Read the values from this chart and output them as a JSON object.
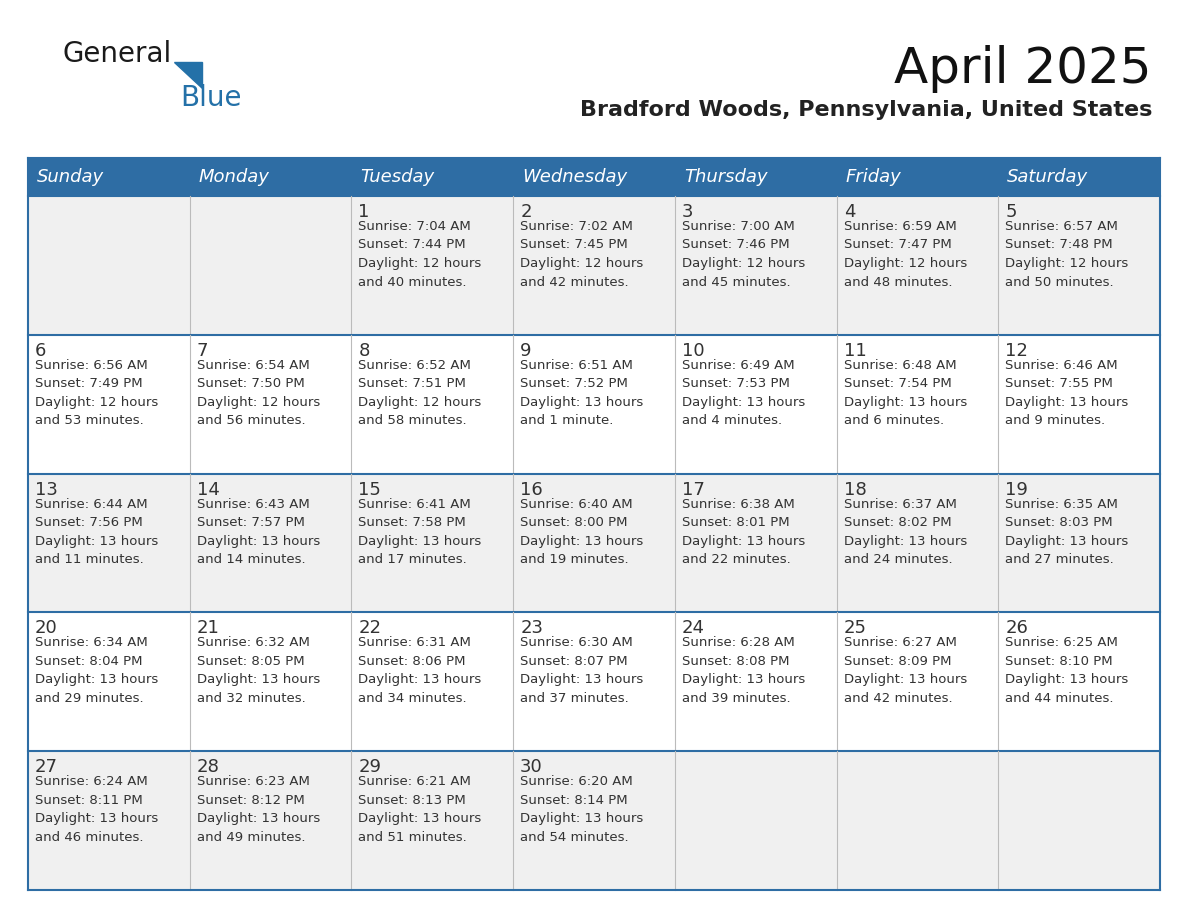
{
  "title": "April 2025",
  "subtitle": "Bradford Woods, Pennsylvania, United States",
  "header_color": "#2E6DA4",
  "header_text_color": "#FFFFFF",
  "border_color": "#2E6DA4",
  "row_sep_color": "#3B5998",
  "col_sep_color": "#BBBBBB",
  "text_color": "#333333",
  "cell_bg_colors": [
    "#F0F0F0",
    "#FFFFFF",
    "#F0F0F0",
    "#FFFFFF",
    "#F0F0F0"
  ],
  "days_of_week": [
    "Sunday",
    "Monday",
    "Tuesday",
    "Wednesday",
    "Thursday",
    "Friday",
    "Saturday"
  ],
  "weeks": [
    [
      {
        "day": "",
        "info": ""
      },
      {
        "day": "",
        "info": ""
      },
      {
        "day": "1",
        "info": "Sunrise: 7:04 AM\nSunset: 7:44 PM\nDaylight: 12 hours\nand 40 minutes."
      },
      {
        "day": "2",
        "info": "Sunrise: 7:02 AM\nSunset: 7:45 PM\nDaylight: 12 hours\nand 42 minutes."
      },
      {
        "day": "3",
        "info": "Sunrise: 7:00 AM\nSunset: 7:46 PM\nDaylight: 12 hours\nand 45 minutes."
      },
      {
        "day": "4",
        "info": "Sunrise: 6:59 AM\nSunset: 7:47 PM\nDaylight: 12 hours\nand 48 minutes."
      },
      {
        "day": "5",
        "info": "Sunrise: 6:57 AM\nSunset: 7:48 PM\nDaylight: 12 hours\nand 50 minutes."
      }
    ],
    [
      {
        "day": "6",
        "info": "Sunrise: 6:56 AM\nSunset: 7:49 PM\nDaylight: 12 hours\nand 53 minutes."
      },
      {
        "day": "7",
        "info": "Sunrise: 6:54 AM\nSunset: 7:50 PM\nDaylight: 12 hours\nand 56 minutes."
      },
      {
        "day": "8",
        "info": "Sunrise: 6:52 AM\nSunset: 7:51 PM\nDaylight: 12 hours\nand 58 minutes."
      },
      {
        "day": "9",
        "info": "Sunrise: 6:51 AM\nSunset: 7:52 PM\nDaylight: 13 hours\nand 1 minute."
      },
      {
        "day": "10",
        "info": "Sunrise: 6:49 AM\nSunset: 7:53 PM\nDaylight: 13 hours\nand 4 minutes."
      },
      {
        "day": "11",
        "info": "Sunrise: 6:48 AM\nSunset: 7:54 PM\nDaylight: 13 hours\nand 6 minutes."
      },
      {
        "day": "12",
        "info": "Sunrise: 6:46 AM\nSunset: 7:55 PM\nDaylight: 13 hours\nand 9 minutes."
      }
    ],
    [
      {
        "day": "13",
        "info": "Sunrise: 6:44 AM\nSunset: 7:56 PM\nDaylight: 13 hours\nand 11 minutes."
      },
      {
        "day": "14",
        "info": "Sunrise: 6:43 AM\nSunset: 7:57 PM\nDaylight: 13 hours\nand 14 minutes."
      },
      {
        "day": "15",
        "info": "Sunrise: 6:41 AM\nSunset: 7:58 PM\nDaylight: 13 hours\nand 17 minutes."
      },
      {
        "day": "16",
        "info": "Sunrise: 6:40 AM\nSunset: 8:00 PM\nDaylight: 13 hours\nand 19 minutes."
      },
      {
        "day": "17",
        "info": "Sunrise: 6:38 AM\nSunset: 8:01 PM\nDaylight: 13 hours\nand 22 minutes."
      },
      {
        "day": "18",
        "info": "Sunrise: 6:37 AM\nSunset: 8:02 PM\nDaylight: 13 hours\nand 24 minutes."
      },
      {
        "day": "19",
        "info": "Sunrise: 6:35 AM\nSunset: 8:03 PM\nDaylight: 13 hours\nand 27 minutes."
      }
    ],
    [
      {
        "day": "20",
        "info": "Sunrise: 6:34 AM\nSunset: 8:04 PM\nDaylight: 13 hours\nand 29 minutes."
      },
      {
        "day": "21",
        "info": "Sunrise: 6:32 AM\nSunset: 8:05 PM\nDaylight: 13 hours\nand 32 minutes."
      },
      {
        "day": "22",
        "info": "Sunrise: 6:31 AM\nSunset: 8:06 PM\nDaylight: 13 hours\nand 34 minutes."
      },
      {
        "day": "23",
        "info": "Sunrise: 6:30 AM\nSunset: 8:07 PM\nDaylight: 13 hours\nand 37 minutes."
      },
      {
        "day": "24",
        "info": "Sunrise: 6:28 AM\nSunset: 8:08 PM\nDaylight: 13 hours\nand 39 minutes."
      },
      {
        "day": "25",
        "info": "Sunrise: 6:27 AM\nSunset: 8:09 PM\nDaylight: 13 hours\nand 42 minutes."
      },
      {
        "day": "26",
        "info": "Sunrise: 6:25 AM\nSunset: 8:10 PM\nDaylight: 13 hours\nand 44 minutes."
      }
    ],
    [
      {
        "day": "27",
        "info": "Sunrise: 6:24 AM\nSunset: 8:11 PM\nDaylight: 13 hours\nand 46 minutes."
      },
      {
        "day": "28",
        "info": "Sunrise: 6:23 AM\nSunset: 8:12 PM\nDaylight: 13 hours\nand 49 minutes."
      },
      {
        "day": "29",
        "info": "Sunrise: 6:21 AM\nSunset: 8:13 PM\nDaylight: 13 hours\nand 51 minutes."
      },
      {
        "day": "30",
        "info": "Sunrise: 6:20 AM\nSunset: 8:14 PM\nDaylight: 13 hours\nand 54 minutes."
      },
      {
        "day": "",
        "info": ""
      },
      {
        "day": "",
        "info": ""
      },
      {
        "day": "",
        "info": ""
      }
    ]
  ],
  "logo_color_general": "#1a1a1a",
  "logo_color_blue": "#2471A8",
  "logo_triangle_color": "#2471A8",
  "title_fontsize": 36,
  "subtitle_fontsize": 16,
  "header_fontsize": 13,
  "day_num_fontsize": 13,
  "info_fontsize": 9.5
}
